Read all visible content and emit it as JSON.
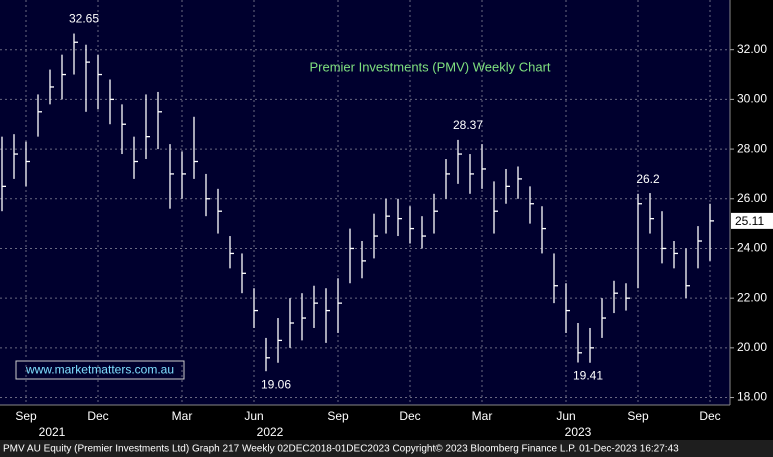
{
  "chart_data": {
    "type": "ohlc",
    "title": "Premier Investments (PMV) Weekly Chart",
    "watermark": "www.marketmatters.com.au",
    "footer": "PMV AU Equity (Premier Investments Ltd) Graph 217  Weekly 02DEC2018-01DEC2023 Copyright© 2023 Bloomberg Finance L.P. 01-Dec-2023 16:27:43",
    "years": [
      "2021",
      "2022",
      "2023"
    ],
    "categories": [
      null,
      null,
      "Sep",
      null,
      null,
      null,
      null,
      null,
      "Dec",
      null,
      null,
      null,
      null,
      null,
      null,
      "Mar",
      null,
      null,
      null,
      null,
      null,
      "Jun",
      null,
      null,
      null,
      null,
      null,
      null,
      "Sep",
      null,
      null,
      null,
      null,
      null,
      "Dec",
      null,
      null,
      null,
      null,
      null,
      "Mar",
      null,
      null,
      null,
      null,
      null,
      null,
      "Jun",
      null,
      null,
      null,
      null,
      null,
      "Sep",
      null,
      null,
      null,
      null,
      null,
      "Dec"
    ],
    "high": [
      28.5,
      28.6,
      28.3,
      30.2,
      31.2,
      31.8,
      32.65,
      32.2,
      31.8,
      30.8,
      29.8,
      28.5,
      30.2,
      30.3,
      28.2,
      27.9,
      29.3,
      27.0,
      26.4,
      24.5,
      23.8,
      22.4,
      20.4,
      21.2,
      22.0,
      22.2,
      22.5,
      22.4,
      22.8,
      24.8,
      24.3,
      25.4,
      26.0,
      26.0,
      25.7,
      25.3,
      26.2,
      27.6,
      28.37,
      27.8,
      28.2,
      26.7,
      27.2,
      27.3,
      26.5,
      25.7,
      23.8,
      22.6,
      21.0,
      20.8,
      22.0,
      22.7,
      22.6,
      26.2,
      26.23,
      25.5,
      24.3,
      24.0,
      24.9,
      25.8
    ],
    "low": [
      25.5,
      26.8,
      26.5,
      28.5,
      29.8,
      30.0,
      31.0,
      29.5,
      29.6,
      29.0,
      27.8,
      26.8,
      27.6,
      28.0,
      25.6,
      26.0,
      26.8,
      25.3,
      24.6,
      23.2,
      22.2,
      20.8,
      19.06,
      19.4,
      20.0,
      20.3,
      20.8,
      20.2,
      20.6,
      22.6,
      22.8,
      23.6,
      24.6,
      24.5,
      24.2,
      24.0,
      24.6,
      26.0,
      26.6,
      26.2,
      26.4,
      24.6,
      25.8,
      26.0,
      25.0,
      23.8,
      21.8,
      20.6,
      19.41,
      19.4,
      20.4,
      21.4,
      21.5,
      22.4,
      24.6,
      23.4,
      23.2,
      22.0,
      23.2,
      23.5
    ],
    "close": [
      26.5,
      27.8,
      27.5,
      29.5,
      30.5,
      31.0,
      32.3,
      31.5,
      31.0,
      30.0,
      29.0,
      27.5,
      28.5,
      29.5,
      27.0,
      27.0,
      27.5,
      26.0,
      25.5,
      23.8,
      23.0,
      21.5,
      19.6,
      20.3,
      21.0,
      21.2,
      21.8,
      21.5,
      21.8,
      24.0,
      23.5,
      24.5,
      25.3,
      25.2,
      24.8,
      24.5,
      25.5,
      27.0,
      27.8,
      27.0,
      27.2,
      25.5,
      26.5,
      26.8,
      25.8,
      24.8,
      22.5,
      21.5,
      19.8,
      20.0,
      21.2,
      22.2,
      22.0,
      25.8,
      25.2,
      24.0,
      23.8,
      22.5,
      24.3,
      25.11
    ],
    "color": "#ffffff",
    "ylim": [
      17.7,
      34
    ],
    "yticks": [
      {
        "value": 18,
        "label": "18.00"
      },
      {
        "value": 20,
        "label": "20.00"
      },
      {
        "value": 22,
        "label": "22.00"
      },
      {
        "value": 24,
        "label": "24.00"
      },
      {
        "value": 26,
        "label": "26.00"
      },
      {
        "value": 28,
        "label": "28.00"
      },
      {
        "value": 30,
        "label": "30.00"
      },
      {
        "value": 32,
        "label": "32.00"
      }
    ],
    "grid": true
  }
}
